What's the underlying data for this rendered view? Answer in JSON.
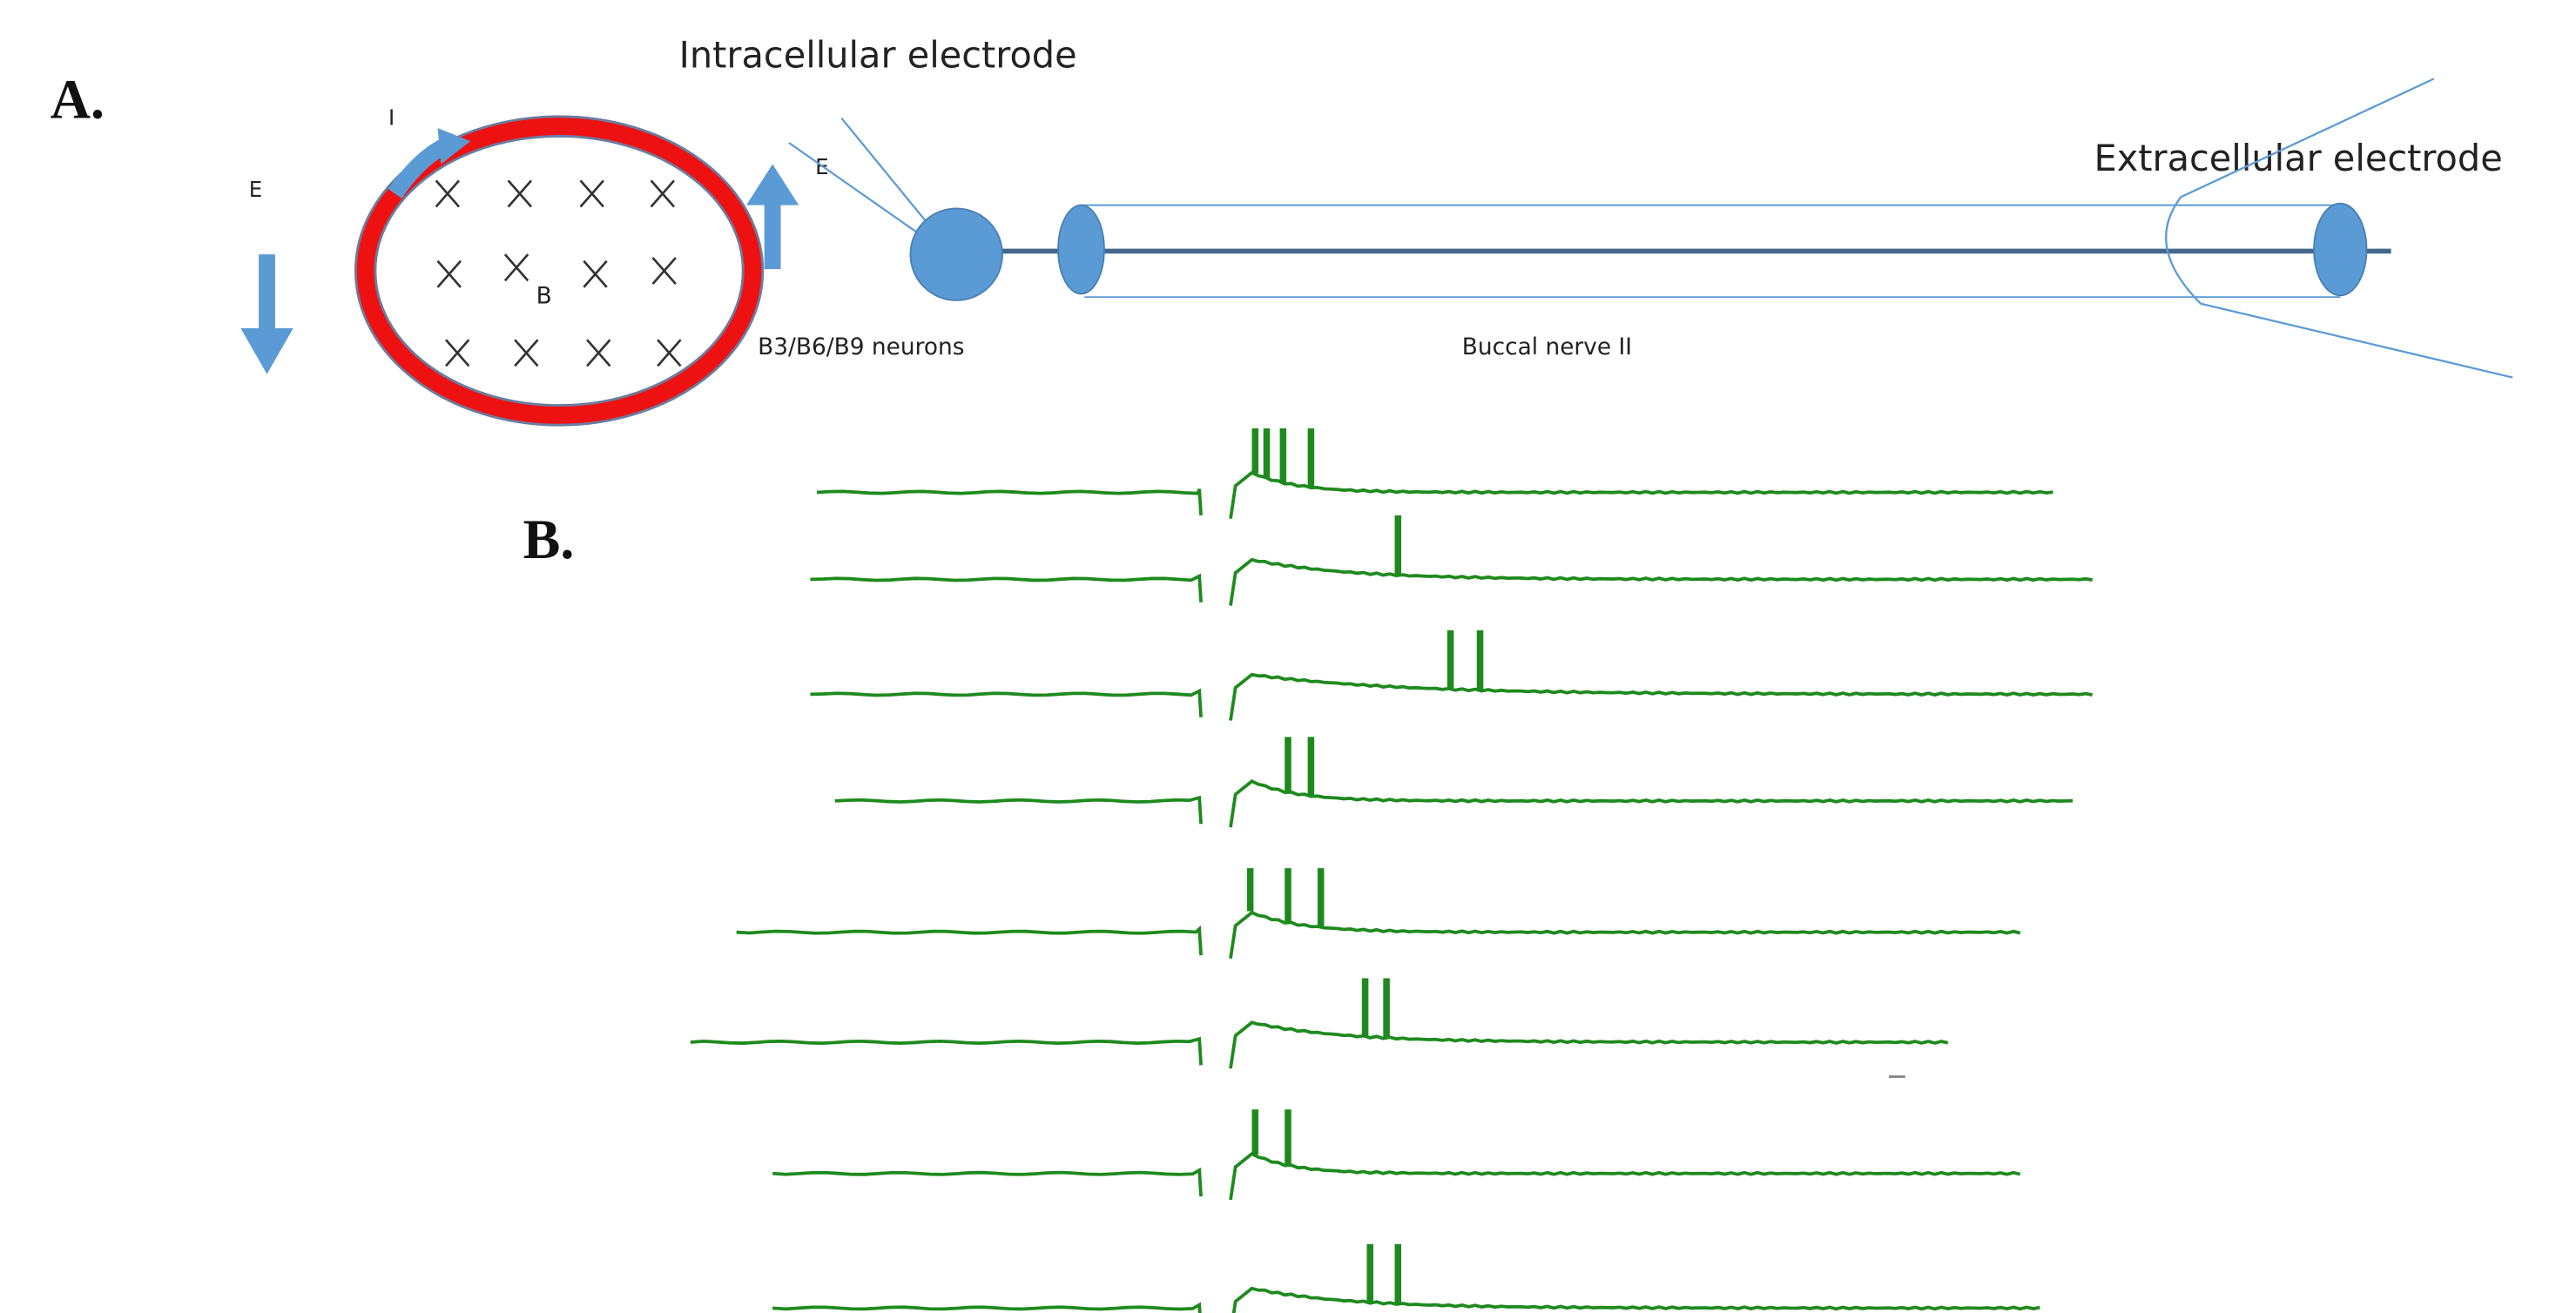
{
  "panel_a": {
    "label": "A.",
    "intracellular_electrode": "Intracellular electrode",
    "extracellular_electrode": "Extracellular electrode",
    "current_label": "I",
    "field_label_left": "E",
    "field_label_right": "E",
    "field_label_center": "B",
    "neurons_label": "B3/B6/B9 neurons",
    "nerve_label": "Buccal nerve II"
  },
  "panel_b": {
    "label": "B."
  }
}
